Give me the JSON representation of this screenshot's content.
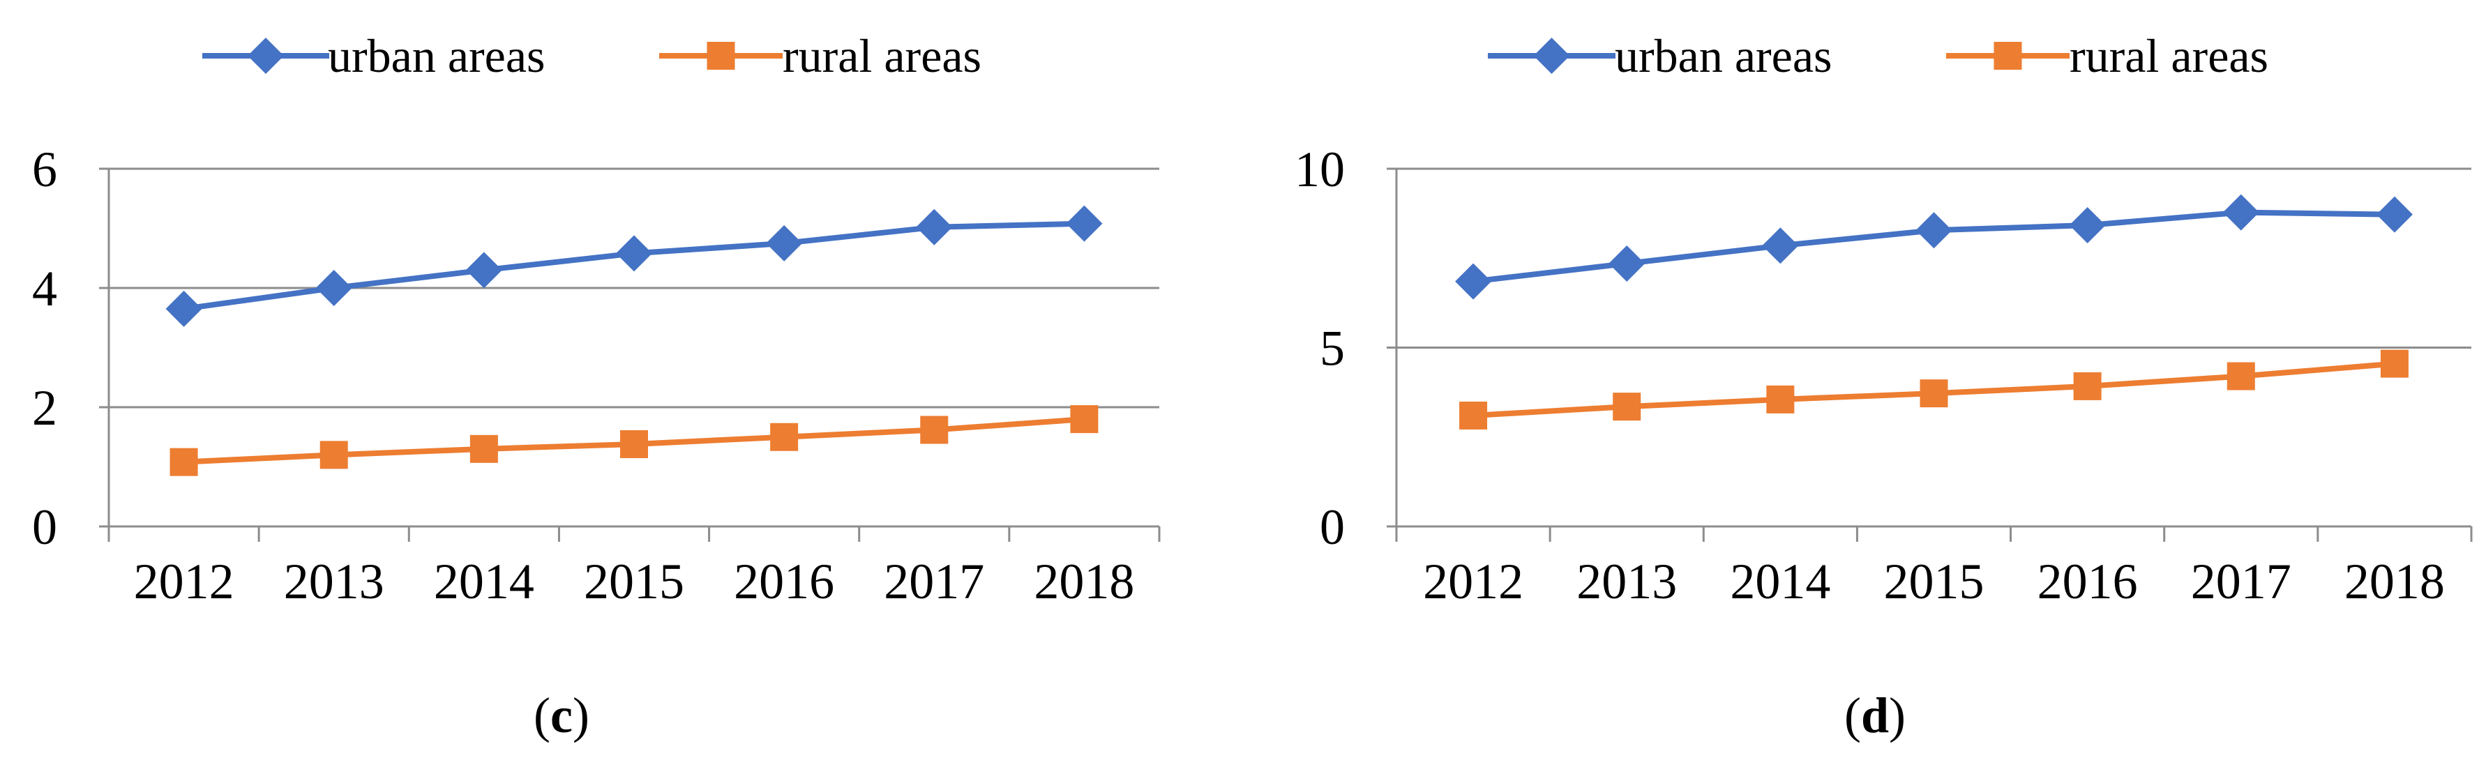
{
  "chart_data": [
    {
      "type": "line",
      "caption": "c",
      "categories": [
        "2012",
        "2013",
        "2014",
        "2015",
        "2016",
        "2017",
        "2018"
      ],
      "ylim": [
        0,
        6
      ],
      "yticks": [
        0,
        2,
        4,
        6
      ],
      "grid": true,
      "legend_position": "top",
      "series": [
        {
          "name": "urban areas",
          "color": "#4472C4",
          "marker": "diamond",
          "values": [
            3.65,
            4.0,
            4.3,
            4.58,
            4.75,
            5.02,
            5.08
          ]
        },
        {
          "name": "rural areas",
          "color": "#ED7D31",
          "marker": "square",
          "values": [
            1.08,
            1.2,
            1.3,
            1.38,
            1.5,
            1.62,
            1.8
          ]
        }
      ]
    },
    {
      "type": "line",
      "caption": "d",
      "categories": [
        "2012",
        "2013",
        "2014",
        "2015",
        "2016",
        "2017",
        "2018"
      ],
      "ylim": [
        0,
        10
      ],
      "yticks": [
        0,
        5,
        10
      ],
      "grid": true,
      "legend_position": "top",
      "series": [
        {
          "name": "urban areas",
          "color": "#4472C4",
          "marker": "diamond",
          "values": [
            6.85,
            7.35,
            7.85,
            8.28,
            8.42,
            8.78,
            8.72
          ]
        },
        {
          "name": "rural areas",
          "color": "#ED7D31",
          "marker": "square",
          "values": [
            3.1,
            3.35,
            3.55,
            3.72,
            3.92,
            4.2,
            4.55
          ]
        }
      ]
    }
  ]
}
